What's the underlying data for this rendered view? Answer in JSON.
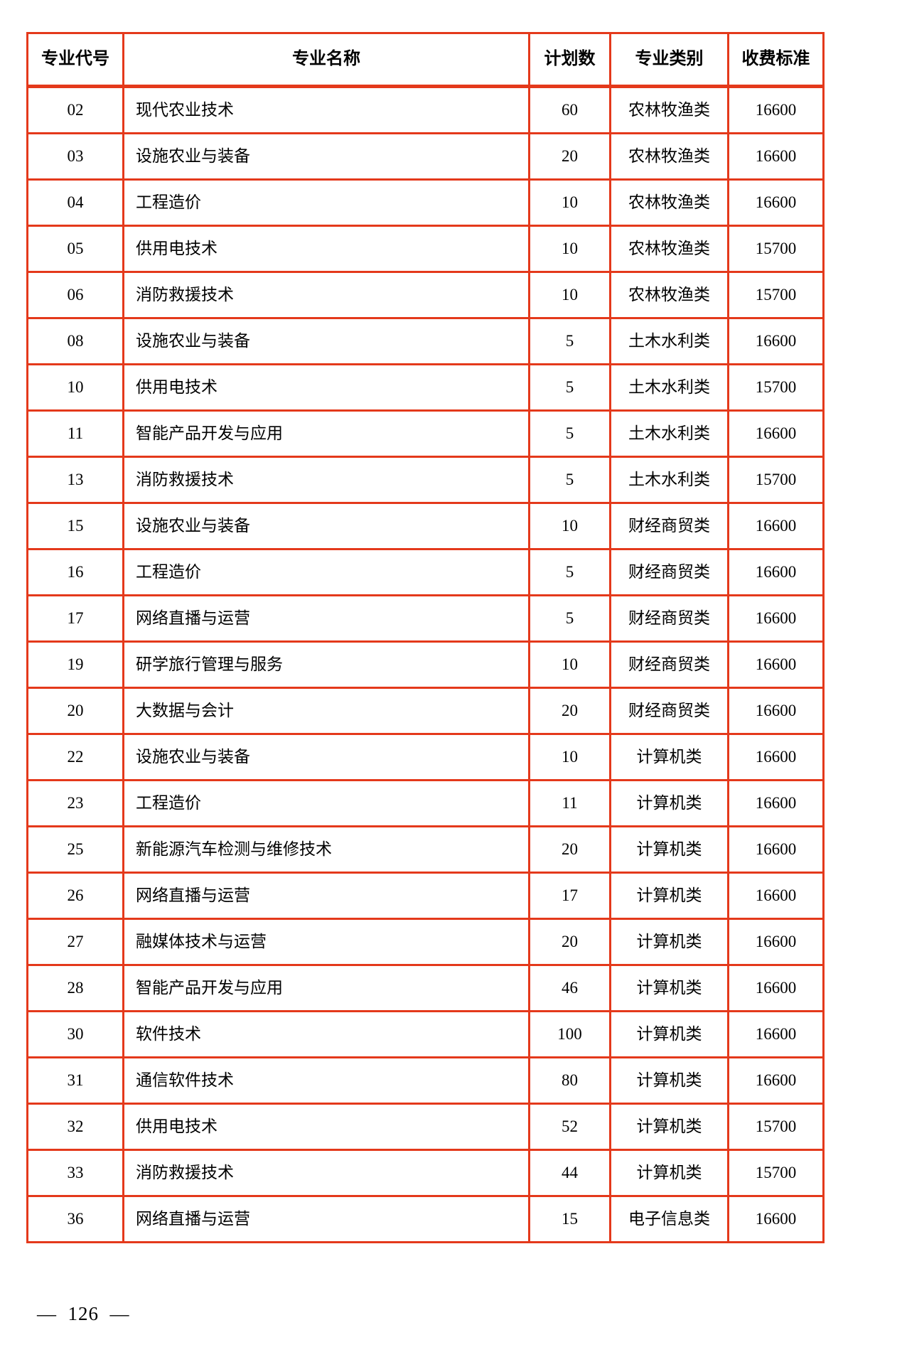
{
  "table": {
    "headers": [
      "专业代号",
      "专业名称",
      "计划数",
      "专业类别",
      "收费标准"
    ],
    "rows": [
      {
        "code": "02",
        "name": "现代农业技术",
        "plan": "60",
        "category": "农林牧渔类",
        "fee": "16600"
      },
      {
        "code": "03",
        "name": "设施农业与装备",
        "plan": "20",
        "category": "农林牧渔类",
        "fee": "16600"
      },
      {
        "code": "04",
        "name": "工程造价",
        "plan": "10",
        "category": "农林牧渔类",
        "fee": "16600"
      },
      {
        "code": "05",
        "name": "供用电技术",
        "plan": "10",
        "category": "农林牧渔类",
        "fee": "15700"
      },
      {
        "code": "06",
        "name": "消防救援技术",
        "plan": "10",
        "category": "农林牧渔类",
        "fee": "15700"
      },
      {
        "code": "08",
        "name": "设施农业与装备",
        "plan": "5",
        "category": "土木水利类",
        "fee": "16600"
      },
      {
        "code": "10",
        "name": "供用电技术",
        "plan": "5",
        "category": "土木水利类",
        "fee": "15700"
      },
      {
        "code": "11",
        "name": "智能产品开发与应用",
        "plan": "5",
        "category": "土木水利类",
        "fee": "16600"
      },
      {
        "code": "13",
        "name": "消防救援技术",
        "plan": "5",
        "category": "土木水利类",
        "fee": "15700"
      },
      {
        "code": "15",
        "name": "设施农业与装备",
        "plan": "10",
        "category": "财经商贸类",
        "fee": "16600"
      },
      {
        "code": "16",
        "name": "工程造价",
        "plan": "5",
        "category": "财经商贸类",
        "fee": "16600"
      },
      {
        "code": "17",
        "name": "网络直播与运营",
        "plan": "5",
        "category": "财经商贸类",
        "fee": "16600"
      },
      {
        "code": "19",
        "name": "研学旅行管理与服务",
        "plan": "10",
        "category": "财经商贸类",
        "fee": "16600"
      },
      {
        "code": "20",
        "name": "大数据与会计",
        "plan": "20",
        "category": "财经商贸类",
        "fee": "16600"
      },
      {
        "code": "22",
        "name": "设施农业与装备",
        "plan": "10",
        "category": "计算机类",
        "fee": "16600"
      },
      {
        "code": "23",
        "name": "工程造价",
        "plan": "11",
        "category": "计算机类",
        "fee": "16600"
      },
      {
        "code": "25",
        "name": "新能源汽车检测与维修技术",
        "plan": "20",
        "category": "计算机类",
        "fee": "16600"
      },
      {
        "code": "26",
        "name": "网络直播与运营",
        "plan": "17",
        "category": "计算机类",
        "fee": "16600"
      },
      {
        "code": "27",
        "name": "融媒体技术与运营",
        "plan": "20",
        "category": "计算机类",
        "fee": "16600"
      },
      {
        "code": "28",
        "name": "智能产品开发与应用",
        "plan": "46",
        "category": "计算机类",
        "fee": "16600"
      },
      {
        "code": "30",
        "name": "软件技术",
        "plan": "100",
        "category": "计算机类",
        "fee": "16600"
      },
      {
        "code": "31",
        "name": "通信软件技术",
        "plan": "80",
        "category": "计算机类",
        "fee": "16600"
      },
      {
        "code": "32",
        "name": "供用电技术",
        "plan": "52",
        "category": "计算机类",
        "fee": "15700"
      },
      {
        "code": "33",
        "name": "消防救援技术",
        "plan": "44",
        "category": "计算机类",
        "fee": "15700"
      },
      {
        "code": "36",
        "name": "网络直播与运营",
        "plan": "15",
        "category": "电子信息类",
        "fee": "16600"
      }
    ],
    "border_color": "#e4391b"
  },
  "footer": {
    "page_number_text": "—  126  —"
  }
}
